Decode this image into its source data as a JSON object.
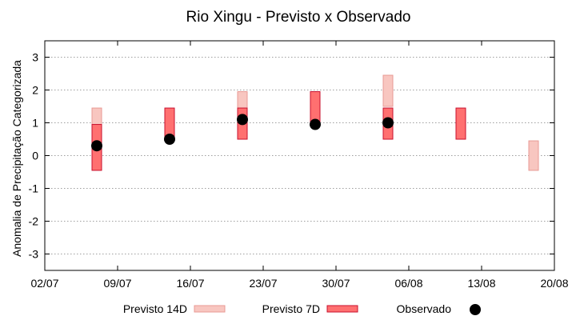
{
  "chart_data": {
    "type": "range-bar+scatter",
    "title": "Rio Xingu - Previsto x Observado",
    "ylabel": "Anomalia de Precipitação Categorizada",
    "xlabel": "",
    "ylim": [
      -3.5,
      3.5
    ],
    "yticks": [
      -3,
      -2,
      -1,
      0,
      1,
      2,
      3
    ],
    "grid": "horizontal dashed",
    "legend_position": "bottom",
    "x_axis": {
      "type": "date",
      "range": [
        "2024-07-02",
        "2024-08-20"
      ],
      "ticks": [
        {
          "date": "2024-07-02",
          "label": "02/07"
        },
        {
          "date": "2024-07-09",
          "label": "09/07"
        },
        {
          "date": "2024-07-16",
          "label": "16/07"
        },
        {
          "date": "2024-07-23",
          "label": "23/07"
        },
        {
          "date": "2024-07-30",
          "label": "30/07"
        },
        {
          "date": "2024-08-06",
          "label": "06/08"
        },
        {
          "date": "2024-08-13",
          "label": "13/08"
        },
        {
          "date": "2024-08-20",
          "label": "20/08"
        }
      ]
    },
    "series": [
      {
        "name": "Previsto 14D",
        "kind": "range",
        "fill": "#f8c6c0",
        "stroke": "#e89a94",
        "points": [
          {
            "x": "2024-07-07",
            "low": -0.45,
            "high": 1.45
          },
          {
            "x": "2024-07-21",
            "low": 0.5,
            "high": 1.95
          },
          {
            "x": "2024-08-04",
            "low": 1.5,
            "high": 2.45
          },
          {
            "x": "2024-08-18",
            "low": -0.45,
            "high": 0.45
          }
        ]
      },
      {
        "name": "Previsto 7D",
        "kind": "range",
        "fill": "#ff7070",
        "stroke": "#c8102e",
        "points": [
          {
            "x": "2024-07-07",
            "low": -0.45,
            "high": 0.95
          },
          {
            "x": "2024-07-14",
            "low": 0.5,
            "high": 1.45
          },
          {
            "x": "2024-07-21",
            "low": 0.5,
            "high": 1.45
          },
          {
            "x": "2024-07-28",
            "low": 0.95,
            "high": 1.95
          },
          {
            "x": "2024-08-04",
            "low": 0.5,
            "high": 1.45
          },
          {
            "x": "2024-08-11",
            "low": 0.5,
            "high": 1.45
          }
        ]
      },
      {
        "name": "Observado",
        "kind": "scatter",
        "color": "#000000",
        "points": [
          {
            "x": "2024-07-07",
            "y": 0.3
          },
          {
            "x": "2024-07-14",
            "y": 0.5
          },
          {
            "x": "2024-07-21",
            "y": 1.1
          },
          {
            "x": "2024-07-28",
            "y": 0.95
          },
          {
            "x": "2024-08-04",
            "y": 1.0
          }
        ]
      }
    ]
  }
}
